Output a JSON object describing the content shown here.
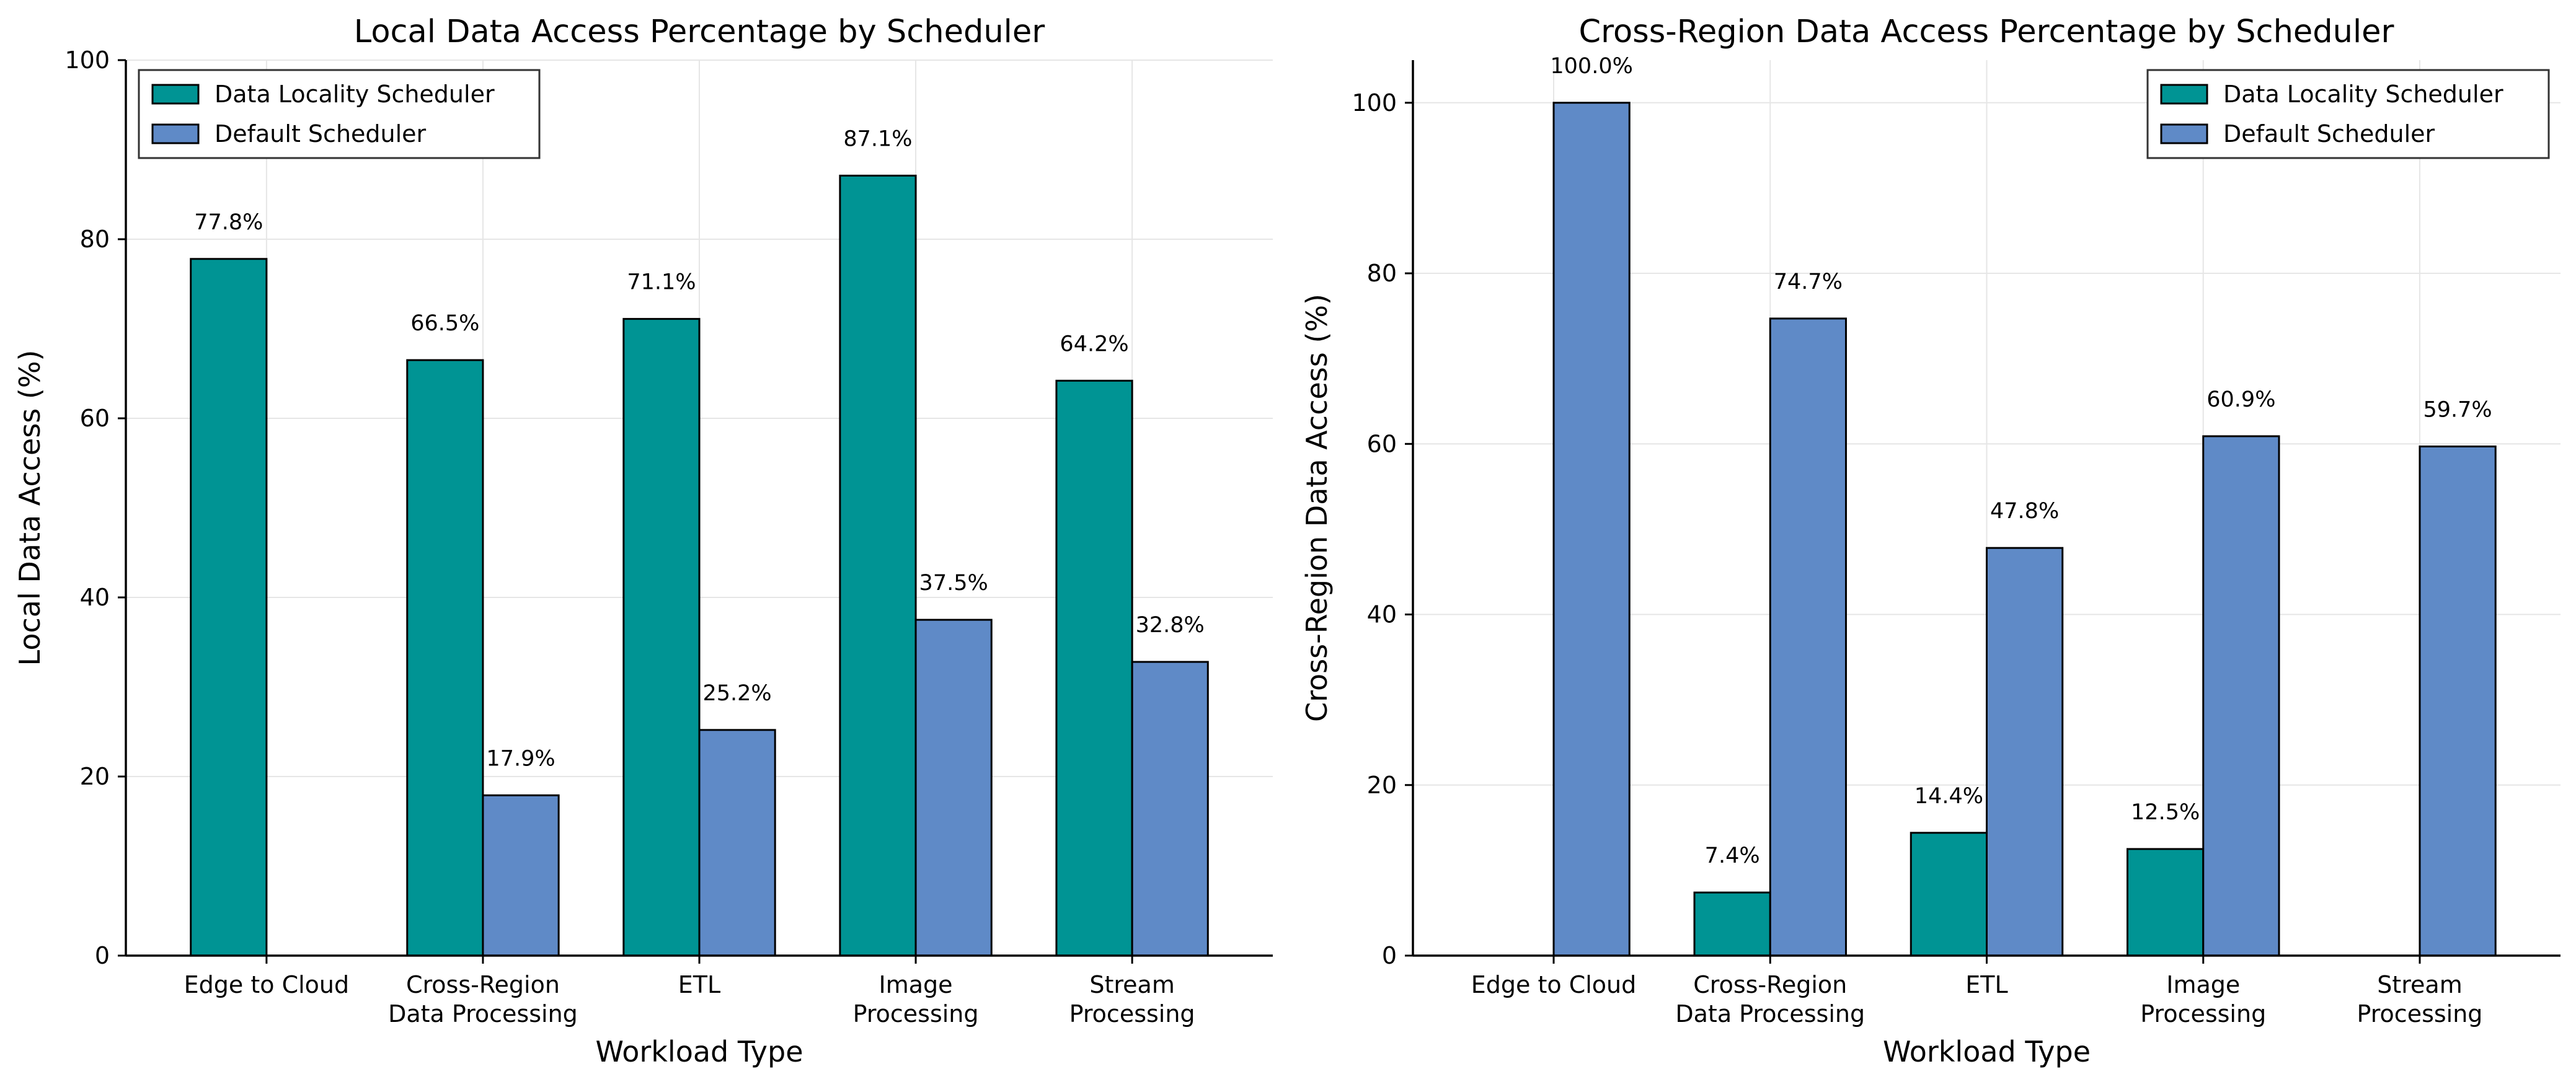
{
  "chart_data": [
    {
      "type": "bar",
      "title": "Local Data Access Percentage by Scheduler",
      "xlabel": "Workload Type",
      "ylabel": "Local Data Access (%)",
      "categories": [
        [
          "Edge to Cloud"
        ],
        [
          "Cross-Region",
          "Data Processing"
        ],
        [
          "ETL"
        ],
        [
          "Image",
          "Processing"
        ],
        [
          "Stream",
          "Processing"
        ]
      ],
      "ylim": [
        0,
        100
      ],
      "yticks": [
        0,
        20,
        40,
        60,
        80,
        100
      ],
      "grid": true,
      "legend_position": "top-left",
      "series": [
        {
          "name": "Data Locality Scheduler",
          "color": "#009494",
          "values": [
            77.8,
            66.5,
            71.1,
            87.1,
            64.2
          ],
          "labels": [
            "77.8%",
            "66.5%",
            "71.1%",
            "87.1%",
            "64.2%"
          ]
        },
        {
          "name": "Default Scheduler",
          "color": "#5f8ac7",
          "values": [
            0,
            17.9,
            25.2,
            37.5,
            32.8
          ],
          "labels": [
            "",
            "17.9%",
            "25.2%",
            "37.5%",
            "32.8%"
          ]
        }
      ]
    },
    {
      "type": "bar",
      "title": "Cross-Region Data Access Percentage by Scheduler",
      "xlabel": "Workload Type",
      "ylabel": "Cross-Region Data Access (%)",
      "categories": [
        [
          "Edge to Cloud"
        ],
        [
          "Cross-Region",
          "Data Processing"
        ],
        [
          "ETL"
        ],
        [
          "Image",
          "Processing"
        ],
        [
          "Stream",
          "Processing"
        ]
      ],
      "ylim": [
        0,
        105
      ],
      "yticks": [
        0,
        20,
        40,
        60,
        80,
        100
      ],
      "grid": true,
      "legend_position": "top-right",
      "series": [
        {
          "name": "Data Locality Scheduler",
          "color": "#009494",
          "values": [
            0,
            7.4,
            14.4,
            12.5,
            0
          ],
          "labels": [
            "",
            "7.4%",
            "14.4%",
            "12.5%",
            ""
          ]
        },
        {
          "name": "Default Scheduler",
          "color": "#5f8ac7",
          "values": [
            100.0,
            74.7,
            47.8,
            60.9,
            59.7
          ],
          "labels": [
            "100.0%",
            "74.7%",
            "47.8%",
            "60.9%",
            "59.7%"
          ]
        }
      ]
    }
  ]
}
